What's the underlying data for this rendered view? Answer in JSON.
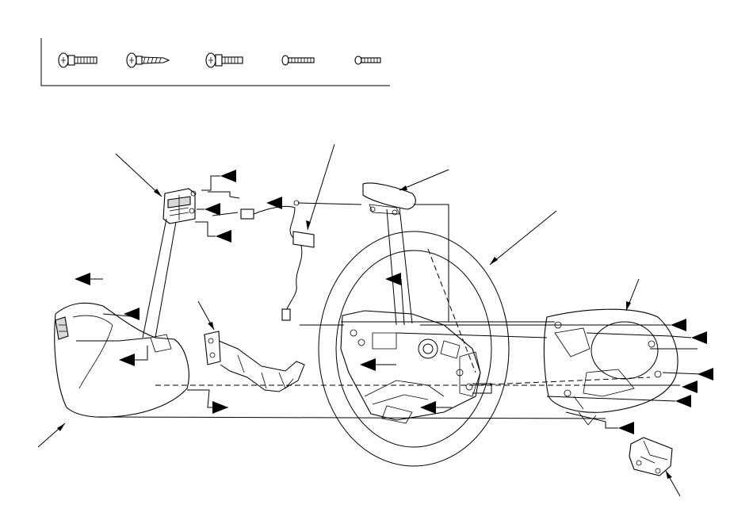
{
  "diagram": {
    "fasteners": [
      {
        "name": "flange-bolt-phillips"
      },
      {
        "name": "tapping-screw"
      },
      {
        "name": "flange-bolt-hex"
      },
      {
        "name": "pan-screw"
      },
      {
        "name": "small-pan-screw"
      }
    ],
    "parts": [
      "cruise-control-switch",
      "steering-wheel-harness",
      "steering-wheel-emblem-cover",
      "steering-wheel",
      "steering-wheel-rear-cover",
      "left-switch-cover",
      "lower-bracket",
      "lower-cover"
    ],
    "callouts": {
      "count": 19,
      "style": "filled-triangle-pointer"
    }
  }
}
